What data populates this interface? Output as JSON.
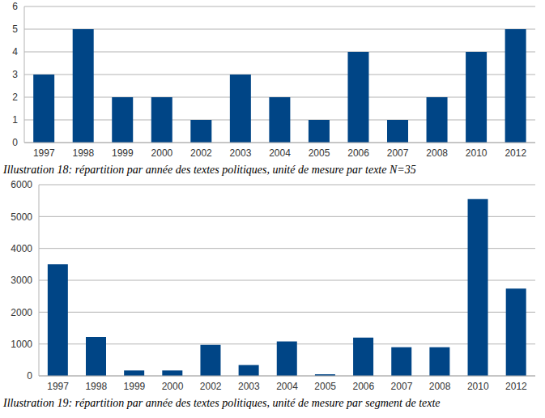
{
  "chart_data": [
    {
      "type": "bar",
      "title": "Illustration 18: répartition par année des textes politiques, unité de mesure par texte N=35",
      "categories": [
        "1997",
        "1998",
        "1999",
        "2000",
        "2002",
        "2003",
        "2004",
        "2005",
        "2006",
        "2007",
        "2008",
        "2010",
        "2012"
      ],
      "values": [
        3,
        5,
        2,
        2,
        1,
        3,
        2,
        1,
        4,
        1,
        2,
        4,
        5
      ],
      "color": "#004586",
      "ylim": [
        0,
        6
      ],
      "yticks": [
        0,
        1,
        2,
        3,
        4,
        5,
        6
      ],
      "grid": true
    },
    {
      "type": "bar",
      "title": "Illustration 19: répartition par année des textes politiques, unité de mesure par segment de texte",
      "categories": [
        "1997",
        "1998",
        "1999",
        "2000",
        "2002",
        "2003",
        "2004",
        "2005",
        "2006",
        "2007",
        "2008",
        "2010",
        "2012"
      ],
      "values": [
        3500,
        1220,
        170,
        170,
        970,
        340,
        1080,
        50,
        1200,
        900,
        900,
        5550,
        2740
      ],
      "color": "#004586",
      "ylim": [
        0,
        6000
      ],
      "yticks": [
        0,
        1000,
        2000,
        3000,
        4000,
        5000,
        6000
      ],
      "grid": true
    }
  ]
}
